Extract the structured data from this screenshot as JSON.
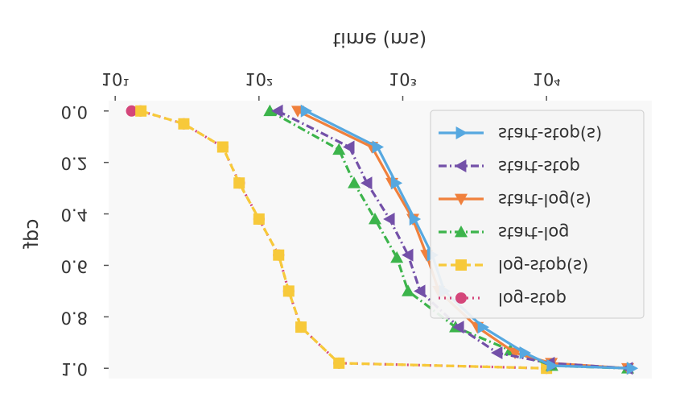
{
  "chart_data": {
    "type": "line",
    "xlabel": "time (ms)",
    "ylabel": "cdf",
    "xscale": "log",
    "xlim": [
      9,
      54000
    ],
    "xticks": [
      {
        "value": 10,
        "label": "10¹"
      },
      {
        "value": 100,
        "label": "10²"
      },
      {
        "value": 1000,
        "label": "10³"
      },
      {
        "value": 10000,
        "label": "10⁴"
      }
    ],
    "ylim": [
      -0.04,
      1.04
    ],
    "yticks": [
      {
        "value": 0,
        "label": "0.0"
      },
      0.2,
      0.4,
      0.6,
      0.8,
      {
        "value": 1,
        "label": "1.0"
      }
    ],
    "legend": "lower right",
    "flip": "vertical",
    "series": [
      {
        "name": "log-stop",
        "color": "#d4467a",
        "linestyle": "dotted",
        "marker": "circle",
        "x": [
          13,
          15,
          30,
          56,
          73,
          100,
          137,
          161,
          196,
          360,
          10000
        ],
        "values": [
          0,
          0,
          0.05,
          0.14,
          0.28,
          0.42,
          0.56,
          0.7,
          0.84,
          0.98,
          1
        ]
      },
      {
        "name": "log-stop(s)",
        "color": "#f7c93a",
        "linestyle": "dashed",
        "marker": "square",
        "x": [
          15.1,
          30,
          56,
          72.8,
          100,
          137,
          161,
          196,
          360,
          10000
        ],
        "values": [
          0,
          0.05,
          0.14,
          0.28,
          0.42,
          0.56,
          0.7,
          0.84,
          0.98,
          1
        ]
      },
      {
        "name": "start-log",
        "color": "#3cb44b",
        "linestyle": "dashdot",
        "marker": "triangle-down",
        "x": [
          119,
          360,
          459,
          641,
          910,
          1089,
          2328,
          5600,
          10900,
          36700
        ],
        "values": [
          0,
          0.15,
          0.28,
          0.42,
          0.57,
          0.7,
          0.84,
          0.93,
          0.99,
          1
        ]
      },
      {
        "name": "start-log(s)",
        "color": "#f0803c",
        "linestyle": "solid",
        "marker": "triangle-up",
        "x": [
          186,
          610,
          841,
          1175,
          1466,
          1780,
          3300,
          6040,
          10800,
          36700
        ],
        "values": [
          0,
          0.14,
          0.28,
          0.42,
          0.56,
          0.7,
          0.84,
          0.94,
          0.98,
          1
        ]
      },
      {
        "name": "start-stop",
        "color": "#7350a8",
        "linestyle": "dashdot",
        "marker": "triangle-left",
        "x": [
          135,
          425,
          564,
          810,
          1089,
          1321,
          2455,
          4550,
          10500,
          36700
        ],
        "values": [
          0,
          0.14,
          0.28,
          0.42,
          0.56,
          0.7,
          0.84,
          0.94,
          0.98,
          1
        ]
      },
      {
        "name": "start-stop(s)",
        "color": "#56a8e0",
        "linestyle": "solid",
        "marker": "triangle-right",
        "x": [
          212,
          667,
          898,
          1208,
          1604,
          1945,
          3606,
          7050,
          10900,
          39200
        ],
        "values": [
          0,
          0.14,
          0.28,
          0.42,
          0.56,
          0.7,
          0.84,
          0.94,
          0.99,
          1
        ]
      }
    ]
  }
}
